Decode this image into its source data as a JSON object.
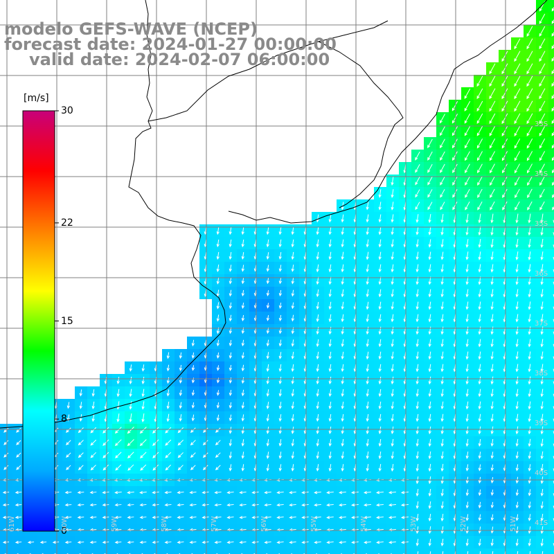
{
  "title": {
    "model": "modelo GEFS-WAVE (NCEP)",
    "forecast_date": "forecast date: 2024-01-27 00:00:00",
    "valid_date": "valid date: 2024-02-07 06:00:00"
  },
  "colorbar": {
    "unit": "[m/s]",
    "ticks": [
      {
        "value": 30,
        "label": "30"
      },
      {
        "value": 22,
        "label": "22"
      },
      {
        "value": 15,
        "label": "15"
      },
      {
        "value": 8,
        "label": "8"
      },
      {
        "value": 0,
        "label": "0"
      }
    ],
    "range": [
      0,
      30
    ],
    "colors": [
      "#0000ff",
      "#00aaff",
      "#00ffff",
      "#00ff00",
      "#ffff00",
      "#ff8000",
      "#ff0000",
      "#c8007a"
    ]
  },
  "latitude_labels": [
    "33S",
    "34S",
    "35S",
    "36S",
    "37S",
    "38S",
    "39S",
    "40S",
    "41S"
  ],
  "longitude_labels": [
    "61W",
    "60W",
    "59W",
    "58W",
    "57W",
    "56W",
    "55W",
    "54W",
    "53W",
    "52W",
    "51W"
  ],
  "map": {
    "field": "wind speed and direction",
    "land_color": "#ffffff",
    "coastline_color": "#000000",
    "gridline_color": "#7f7f7f",
    "arrow_color": "#ffffff"
  }
}
